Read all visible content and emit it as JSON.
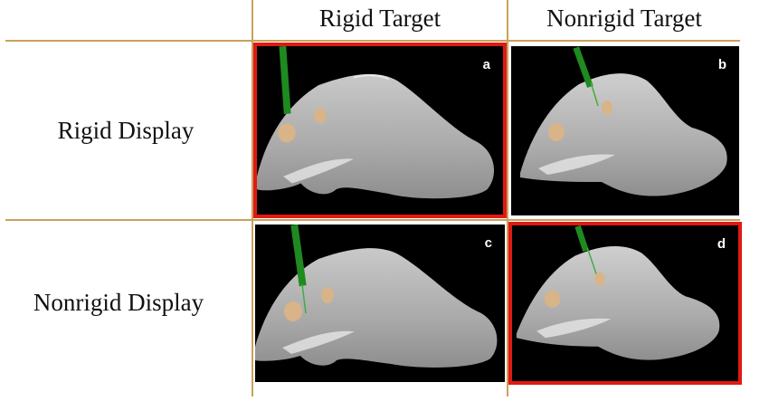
{
  "columns": [
    "Rigid Target",
    "Nonrigid Target"
  ],
  "rows": [
    "Rigid Display",
    "Nonrigid Display"
  ],
  "panels": [
    {
      "label": "a",
      "highlighted": true
    },
    {
      "label": "b",
      "highlighted": false
    },
    {
      "label": "c",
      "highlighted": false
    },
    {
      "label": "d",
      "highlighted": true
    }
  ],
  "colors": {
    "grid_line": "#c9a15a",
    "highlight_border": "#e01a12",
    "panel_background": "#000000",
    "model_surface": "#b8b8b8",
    "needle": "#1f8a1f",
    "target": "#d8b488"
  }
}
